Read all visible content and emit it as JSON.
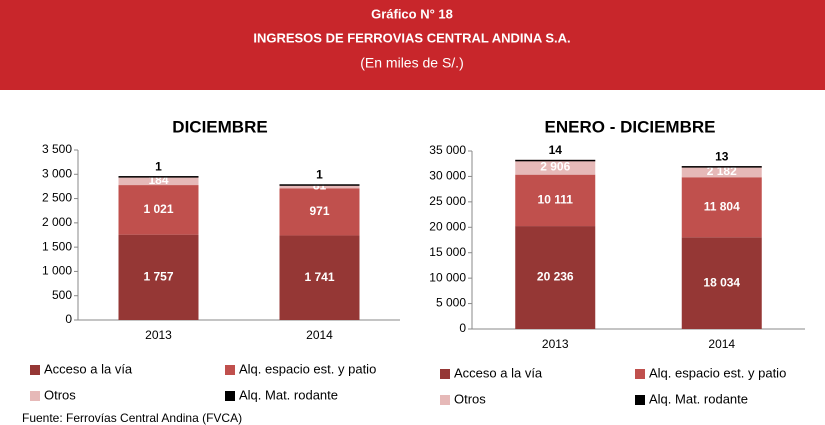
{
  "header": {
    "title": "Gráfico N° 18",
    "subtitle": "INGRESOS DE FERROVIAS CENTRAL ANDINA S.A.",
    "units": "(En miles de S/.)"
  },
  "chart_data": [
    {
      "type": "bar",
      "stacked": true,
      "title": "DICIEMBRE",
      "categories": [
        "2013",
        "2014"
      ],
      "ylim": [
        0,
        3500
      ],
      "yticks": [
        0,
        500,
        {
          "value": 1000,
          "label": "1 000"
        },
        {
          "value": 1500,
          "label": "1 500"
        },
        {
          "value": 2000,
          "label": "2 000"
        },
        {
          "value": 2500,
          "label": "2 500"
        },
        {
          "value": 3000,
          "label": "3 000"
        },
        {
          "value": 3500,
          "label": "3 500"
        }
      ],
      "series": [
        {
          "name": "Acceso a la vía",
          "color": "#953735",
          "values": [
            1757,
            1741
          ],
          "value_labels": [
            "1 757",
            "1 741"
          ]
        },
        {
          "name": "Alq. espacio est. y patio",
          "color": "#c0504d",
          "values": [
            1021,
            971
          ],
          "value_labels": [
            "1 021",
            "971"
          ]
        },
        {
          "name": "Otros",
          "color": "#e6b9b8",
          "values": [
            184,
            81
          ],
          "value_labels": [
            "184",
            "81"
          ]
        },
        {
          "name": "Alq. Mat. rodante",
          "color": "#000000",
          "values": [
            1,
            1
          ],
          "value_labels": [
            "1",
            "1"
          ]
        }
      ]
    },
    {
      "type": "bar",
      "stacked": true,
      "title": "ENERO - DICIEMBRE",
      "categories": [
        "2013",
        "2014"
      ],
      "ylim": [
        0,
        35000
      ],
      "yticks": [
        0,
        {
          "value": 5000,
          "label": "5 000"
        },
        {
          "value": 10000,
          "label": "10 000"
        },
        {
          "value": 15000,
          "label": "15 000"
        },
        {
          "value": 20000,
          "label": "20 000"
        },
        {
          "value": 25000,
          "label": "25 000"
        },
        {
          "value": 30000,
          "label": "30 000"
        },
        {
          "value": 35000,
          "label": "35 000"
        }
      ],
      "series": [
        {
          "name": "Acceso a la vía",
          "color": "#953735",
          "values": [
            20236,
            18034
          ],
          "value_labels": [
            "20 236",
            "18 034"
          ]
        },
        {
          "name": "Alq. espacio est. y patio",
          "color": "#c0504d",
          "values": [
            10111,
            11804
          ],
          "value_labels": [
            "10 111",
            "11 804"
          ]
        },
        {
          "name": "Otros",
          "color": "#e6b9b8",
          "values": [
            2906,
            2182
          ],
          "value_labels": [
            "2 906",
            "2 182"
          ]
        },
        {
          "name": "Alq. Mat. rodante",
          "color": "#000000",
          "values": [
            14,
            13
          ],
          "value_labels": [
            "14",
            "13"
          ]
        }
      ]
    }
  ],
  "source": "Fuente: Ferrovías Central Andina (FVCA)"
}
